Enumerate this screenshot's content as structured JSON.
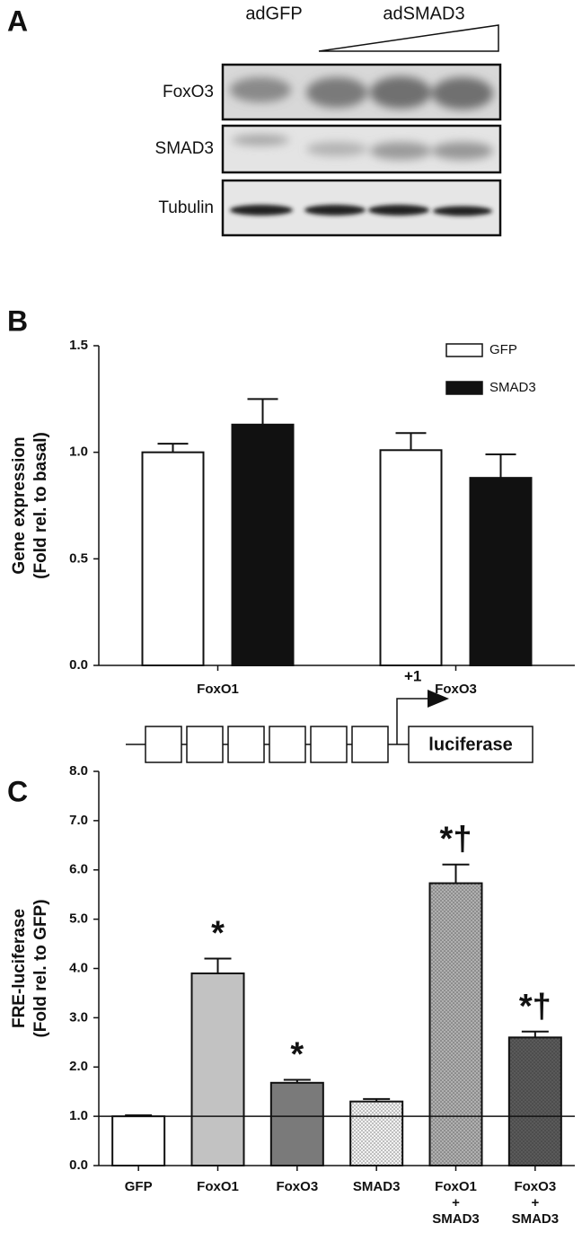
{
  "panel_a": {
    "label": "A",
    "control": "adGFP",
    "treatment": "adSMAD3",
    "blots": [
      "FoxO3",
      "SMAD3",
      "Tubulin"
    ]
  },
  "chart_data": [
    {
      "type": "bar",
      "panel_label": "B",
      "ylabel": [
        "Gene expression",
        "(Fold rel. to basal)"
      ],
      "categories": [
        "FoxO1",
        "FoxO3"
      ],
      "series": [
        {
          "name": "GFP",
          "color": "#ffffff",
          "values": [
            1.0,
            1.01
          ],
          "errors": [
            0.04,
            0.08
          ]
        },
        {
          "name": "SMAD3",
          "color": "#111111",
          "values": [
            1.13,
            0.88
          ],
          "errors": [
            0.12,
            0.11
          ]
        }
      ],
      "ylim": [
        0,
        1.5
      ],
      "yticks": [
        {
          "value": 0,
          "label": "0.0"
        },
        {
          "value": 0.5,
          "label": "0.5"
        },
        {
          "value": 1,
          "label": "1.0"
        },
        {
          "value": 1.5,
          "label": "1.5"
        }
      ],
      "legend": "top-right"
    },
    {
      "type": "bar",
      "panel_label": "C",
      "ylabel": [
        "FRE-luciferase",
        "(Fold rel. to GFP)"
      ],
      "categories": [
        [
          "GFP"
        ],
        [
          "FoxO1"
        ],
        [
          "FoxO3"
        ],
        [
          "SMAD3"
        ],
        [
          "FoxO1",
          "+",
          "SMAD3"
        ],
        [
          "FoxO3",
          "+",
          "SMAD3"
        ]
      ],
      "values": [
        1.0,
        3.9,
        1.68,
        1.3,
        5.73,
        2.6
      ],
      "errors": [
        0.02,
        0.3,
        0.06,
        0.05,
        0.38,
        0.12
      ],
      "colors": [
        "#ffffff",
        "#c2c2c2",
        "#7a7a7a",
        "#f2f2f2",
        "#b0b0b0",
        "#5a5a5a"
      ],
      "dotted": [
        false,
        false,
        false,
        true,
        true,
        true
      ],
      "annotations": [
        null,
        "*",
        "*",
        null,
        "*†",
        "*†"
      ],
      "reference_line": 1,
      "ylim": [
        0,
        8
      ],
      "yticks": [
        {
          "value": 0,
          "label": "0.0"
        },
        {
          "value": 1,
          "label": "1.0"
        },
        {
          "value": 2,
          "label": "2.0"
        },
        {
          "value": 3,
          "label": "3.0"
        },
        {
          "value": 4,
          "label": "4.0"
        },
        {
          "value": 5,
          "label": "5.0"
        },
        {
          "value": 6,
          "label": "6.0"
        },
        {
          "value": 7,
          "label": "7.0"
        },
        {
          "value": 8,
          "label": "8.0"
        }
      ],
      "diagram": {
        "start_label": "+1",
        "reporter": "luciferase"
      }
    }
  ]
}
